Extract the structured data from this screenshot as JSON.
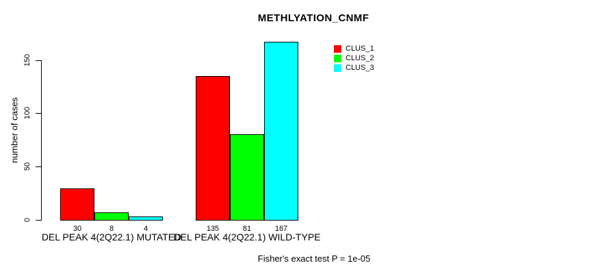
{
  "title": "METHLYATION_CNMF",
  "caption": "Fisher's exact test P = 1e-05",
  "colors": {
    "background": "#ffffff",
    "axis": "#000000",
    "bar_border": "#000000",
    "clus_1": "#ff0000",
    "clus_2": "#00ff00",
    "clus_3": "#00ffff"
  },
  "chart_data": {
    "type": "bar",
    "title": "METHLYATION_CNMF",
    "xlabel": "",
    "ylabel": "number of cases",
    "yticks": [
      0,
      50,
      100,
      150
    ],
    "ylim": [
      0,
      170
    ],
    "grid": false,
    "legend_position": "top-right",
    "categories": [
      "DEL PEAK 4(2Q22.1) MUTATED",
      "DEL PEAK 4(2Q22.1) WILD-TYPE"
    ],
    "series": [
      {
        "name": "CLUS_1",
        "color": "#ff0000",
        "values": [
          30,
          135
        ]
      },
      {
        "name": "CLUS_2",
        "color": "#00ff00",
        "values": [
          8,
          81
        ]
      },
      {
        "name": "CLUS_3",
        "color": "#00ffff",
        "values": [
          4,
          167
        ]
      }
    ],
    "bar_value_labels": [
      [
        "30",
        "8",
        "4"
      ],
      [
        "135",
        "81",
        "167"
      ]
    ],
    "annotation": "Fisher's exact test P = 1e-05"
  }
}
